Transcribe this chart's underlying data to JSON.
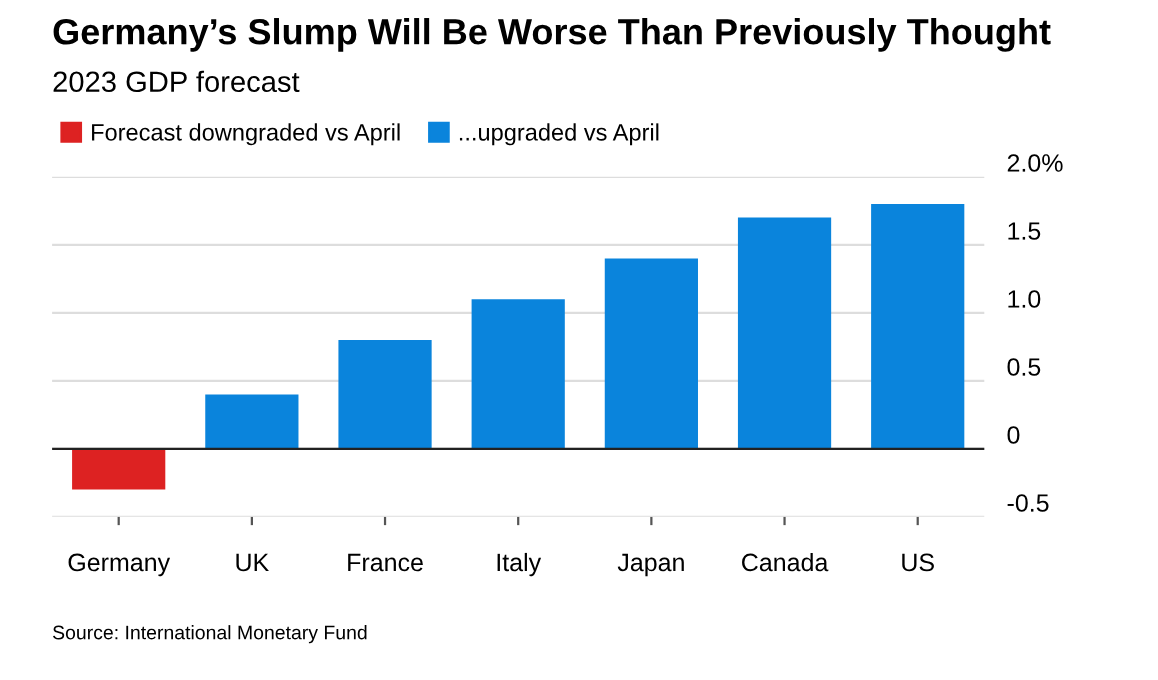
{
  "chart_data": {
    "type": "bar",
    "title": "Germany’s Slump Will Be Worse Than Previously Thought",
    "subtitle": "2023 GDP forecast",
    "categories": [
      "Germany",
      "UK",
      "France",
      "Italy",
      "Japan",
      "Canada",
      "US"
    ],
    "stacked": true,
    "series": [
      {
        "name": "Forecast downgraded vs April",
        "color": "#dd2222",
        "values": [
          -0.3,
          null,
          null,
          null,
          null,
          null,
          null
        ]
      },
      {
        "name": "...upgraded vs April",
        "color": "#0a84dc",
        "values": [
          null,
          0.4,
          0.8,
          1.1,
          1.4,
          1.7,
          1.8
        ]
      }
    ],
    "ylim": [
      -0.5,
      2.0
    ],
    "yticks": [
      {
        "value": 2.0,
        "label": "2.0%"
      },
      1.5,
      {
        "value": 1.0,
        "label": "1.0"
      },
      0.5,
      0,
      -0.5
    ],
    "grid": "y",
    "legend": "top left",
    "annotations": [
      "Source: International Monetary Fund"
    ]
  }
}
